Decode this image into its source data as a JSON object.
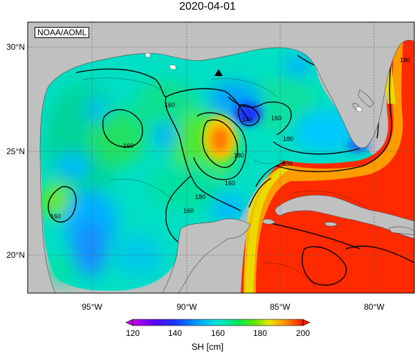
{
  "title": "2020-04-01",
  "attribution": "NOAA/AOML",
  "map": {
    "lat_ticks": [
      "20°N",
      "25°N",
      "30°N"
    ],
    "lon_ticks": [
      "95°W",
      "90°W",
      "85°W",
      "80°W"
    ],
    "contour_labels": [
      "140",
      "160",
      "160",
      "160",
      "160",
      "160",
      "160",
      "180",
      "180",
      "180",
      "180",
      "200"
    ]
  },
  "colorbar": {
    "ticks": [
      "120",
      "140",
      "160",
      "180",
      "200"
    ],
    "units": "SH [cm]"
  },
  "colors": {
    "land": "#c0c0c0",
    "land_outline": "#444444",
    "grid": "#555555"
  }
}
